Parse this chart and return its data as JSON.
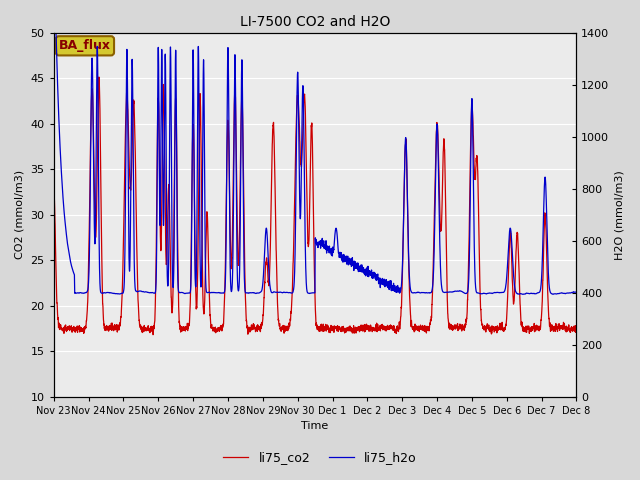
{
  "title": "LI-7500 CO2 and H2O",
  "xlabel": "Time",
  "ylabel_left": "CO2 (mmol/m3)",
  "ylabel_right": "H2O (mmol/m3)",
  "ylim_left": [
    10,
    50
  ],
  "ylim_right": [
    0,
    1400
  ],
  "legend_labels": [
    "li75_co2",
    "li75_h2o"
  ],
  "legend_colors": [
    "#cc0000",
    "#0000cc"
  ],
  "line_width": 0.9,
  "bg_color": "#d8d8d8",
  "plot_bg_color": "#ebebeb",
  "annotation_text": "BA_flux",
  "annotation_bg": "#d4c830",
  "annotation_border": "#8b6000",
  "tick_labels": [
    "Nov 23",
    "Nov 24",
    "Nov 25",
    "Nov 26",
    "Nov 27",
    "Nov 28",
    "Nov 29",
    "Nov 30",
    "Dec 1",
    "Dec 2",
    "Dec 3",
    "Dec 4",
    "Dec 5",
    "Dec 6",
    "Dec 7",
    "Dec 8"
  ],
  "yticks_left": [
    10,
    15,
    20,
    25,
    30,
    35,
    40,
    45,
    50
  ],
  "yticks_right": [
    0,
    200,
    400,
    600,
    800,
    1000,
    1200,
    1400
  ],
  "n_points": 5000
}
